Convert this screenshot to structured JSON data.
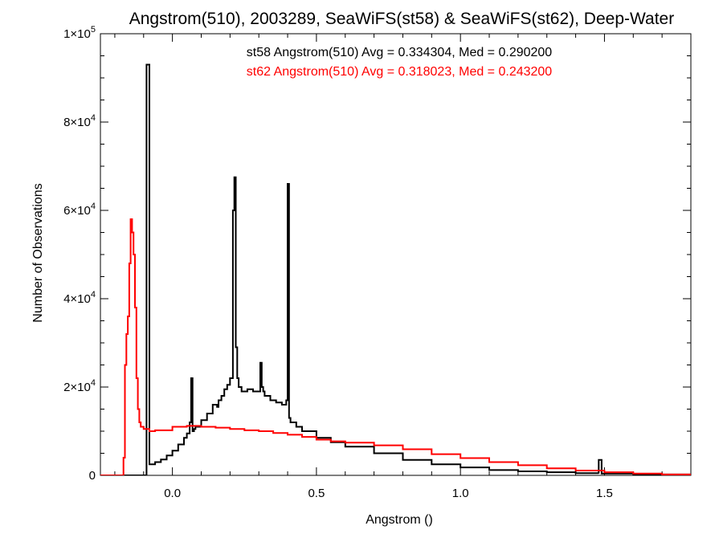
{
  "chart_data": {
    "type": "line",
    "title": "Angstrom(510), 2003289, SeaWiFS(st58) & SeaWiFS(st62), Deep-Water",
    "xlabel": "Angstrom ()",
    "ylabel": "Number of Observations",
    "xlim": [
      -0.25,
      1.8
    ],
    "ylim": [
      0,
      100000
    ],
    "x_ticks": [
      {
        "value": 0.0,
        "label": "0.0"
      },
      {
        "value": 0.5,
        "label": "0.5"
      },
      {
        "value": 1.0,
        "label": "1.0"
      },
      {
        "value": 1.5,
        "label": "1.5"
      }
    ],
    "y_ticks": [
      {
        "value": 0,
        "mant": "0",
        "exp": ""
      },
      {
        "value": 20000,
        "mant": "2×10",
        "exp": "4"
      },
      {
        "value": 40000,
        "mant": "4×10",
        "exp": "4"
      },
      {
        "value": 60000,
        "mant": "6×10",
        "exp": "4"
      },
      {
        "value": 80000,
        "mant": "8×10",
        "exp": "4"
      },
      {
        "value": 100000,
        "mant": "1×10",
        "exp": "5"
      }
    ],
    "grid": false,
    "series": [
      {
        "name": "st58 Angstrom(510) Avg = 0.334304, Med = 0.290200",
        "color": "#000000",
        "x": [
          -0.25,
          -0.09,
          -0.09,
          -0.08,
          -0.08,
          -0.06,
          -0.04,
          -0.02,
          0.0,
          0.02,
          0.04,
          0.05,
          0.06,
          0.065,
          0.07,
          0.075,
          0.08,
          0.1,
          0.12,
          0.14,
          0.155,
          0.16,
          0.17,
          0.18,
          0.19,
          0.2,
          0.21,
          0.215,
          0.22,
          0.225,
          0.23,
          0.24,
          0.26,
          0.28,
          0.3,
          0.305,
          0.31,
          0.315,
          0.32,
          0.34,
          0.36,
          0.38,
          0.395,
          0.4,
          0.405,
          0.41,
          0.43,
          0.45,
          0.5,
          0.55,
          0.6,
          0.7,
          0.8,
          0.9,
          1.0,
          1.1,
          1.2,
          1.3,
          1.4,
          1.48,
          1.48,
          1.49,
          1.49,
          1.6,
          1.8
        ],
        "values": [
          0,
          0,
          93000,
          93000,
          2500,
          3000,
          3600,
          4500,
          5600,
          7000,
          8500,
          9500,
          12000,
          22000,
          10000,
          10500,
          11000,
          12500,
          14000,
          16000,
          15500,
          17000,
          18000,
          19500,
          20500,
          22000,
          60000,
          67500,
          29000,
          22000,
          20000,
          19000,
          19500,
          19000,
          19000,
          25500,
          20000,
          19000,
          18000,
          17000,
          16500,
          16000,
          17000,
          66000,
          13000,
          12000,
          11000,
          10000,
          8500,
          7500,
          6500,
          5000,
          3500,
          2500,
          1800,
          1200,
          900,
          700,
          500,
          400,
          3500,
          3500,
          400,
          200,
          100
        ]
      },
      {
        "name": "st62 Angstrom(510) Avg = 0.318023, Med = 0.243200",
        "color": "#ff0000",
        "x": [
          -0.25,
          -0.175,
          -0.17,
          -0.165,
          -0.16,
          -0.155,
          -0.15,
          -0.145,
          -0.14,
          -0.135,
          -0.13,
          -0.125,
          -0.12,
          -0.115,
          -0.11,
          -0.1,
          -0.08,
          -0.06,
          0.0,
          0.05,
          0.1,
          0.15,
          0.2,
          0.25,
          0.3,
          0.35,
          0.4,
          0.45,
          0.5,
          0.55,
          0.6,
          0.7,
          0.8,
          0.9,
          1.0,
          1.1,
          1.2,
          1.3,
          1.4,
          1.5,
          1.6,
          1.7,
          1.8
        ],
        "values": [
          0,
          0,
          4000,
          25000,
          32000,
          36000,
          48000,
          58000,
          55000,
          50000,
          38000,
          22000,
          15000,
          12000,
          11000,
          10500,
          10000,
          10200,
          11000,
          11200,
          11000,
          10800,
          10500,
          10200,
          10000,
          9600,
          9200,
          8700,
          8100,
          7700,
          7400,
          6800,
          5900,
          4800,
          3900,
          3000,
          2300,
          1600,
          1100,
          700,
          400,
          200,
          100
        ]
      }
    ]
  }
}
